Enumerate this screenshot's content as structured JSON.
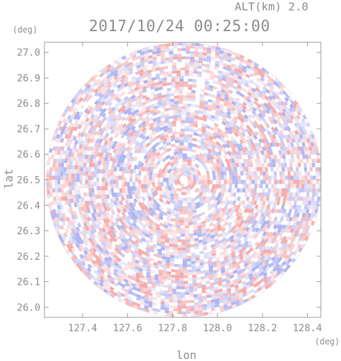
{
  "header": {
    "subtitle": "ALT(km) 2.0",
    "title": "2017/10/24 00:25:00"
  },
  "axes": {
    "x_title": "lon",
    "y_title": "lat",
    "x_unit": "(deg)",
    "y_unit": "(deg)"
  },
  "colors": {
    "positive": "#f4a6a6",
    "negative": "#aab0f0",
    "neutral": "#ffffff",
    "frame": "#9a9a9a",
    "text": "#8c8c8c"
  },
  "chart_data": {
    "type": "heatmap",
    "title": "2017/10/24 00:25:00",
    "subtitle": "ALT(km) 2.0",
    "xlabel": "lon",
    "ylabel": "lat",
    "x_unit": "(deg)",
    "y_unit": "(deg)",
    "xlim": [
      127.23,
      128.46
    ],
    "ylim": [
      25.96,
      27.04
    ],
    "x_ticks": [
      "127.4",
      "127.6",
      "127.8",
      "128.0",
      "128.2",
      "128.4"
    ],
    "y_ticks": [
      "26.0",
      "26.1",
      "26.2",
      "26.3",
      "26.4",
      "26.5",
      "26.6",
      "26.7",
      "26.8",
      "26.9",
      "27.0"
    ],
    "x_tick_values": [
      127.4,
      127.6,
      127.8,
      128.0,
      128.2,
      128.4
    ],
    "y_tick_values": [
      26.0,
      26.1,
      26.2,
      26.3,
      26.4,
      26.5,
      26.6,
      26.7,
      26.8,
      26.9,
      27.0
    ],
    "radar_center": [
      127.85,
      26.5
    ],
    "radar_radius_deg_lat": 0.54,
    "grid": false,
    "colormap": "diverging red-white-blue"
  }
}
